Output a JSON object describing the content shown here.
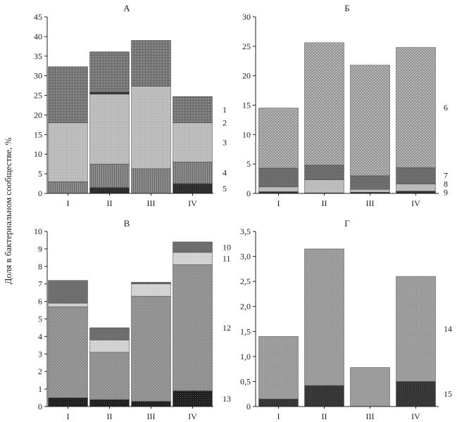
{
  "figure": {
    "ylabel": "Доля в бактериальном сообществе, %"
  },
  "chart_data": [
    {
      "type": "bar",
      "stacked": true,
      "title": "А",
      "categories": [
        "I",
        "II",
        "III",
        "IV"
      ],
      "yticks": [
        "0",
        "5",
        "10",
        "15",
        "20",
        "25",
        "30",
        "35",
        "40",
        "45"
      ],
      "ylim": [
        0,
        45
      ],
      "series": [
        {
          "name": "5",
          "values": [
            0,
            1.5,
            0,
            2.5
          ],
          "pattern": "pat5"
        },
        {
          "name": "4",
          "values": [
            3,
            6,
            6.3,
            5.5
          ],
          "pattern": "pat4"
        },
        {
          "name": "3",
          "values": [
            15,
            17.8,
            21,
            10
          ],
          "pattern": "pat3"
        },
        {
          "name": "2",
          "values": [
            0,
            0.5,
            0,
            0
          ],
          "pattern": "pat2"
        },
        {
          "name": "1",
          "values": [
            14.3,
            10.3,
            11.7,
            6.7
          ],
          "pattern": "pat1"
        }
      ]
    },
    {
      "type": "bar",
      "stacked": true,
      "title": "Б",
      "categories": [
        "I",
        "II",
        "III",
        "IV"
      ],
      "yticks": [
        "0",
        "5",
        "10",
        "15",
        "20",
        "25",
        "30"
      ],
      "ylim": [
        0,
        30
      ],
      "series": [
        {
          "name": "9",
          "values": [
            0.3,
            0.1,
            0.2,
            0.4
          ],
          "pattern": "pat9"
        },
        {
          "name": "8",
          "values": [
            0.8,
            2.2,
            0.5,
            1.2
          ],
          "pattern": "pat8"
        },
        {
          "name": "7",
          "values": [
            3.2,
            2.5,
            2.3,
            2.8
          ],
          "pattern": "pat7"
        },
        {
          "name": "6",
          "values": [
            10.2,
            20.8,
            18.8,
            20.4
          ],
          "pattern": "pat6"
        }
      ]
    },
    {
      "type": "bar",
      "stacked": true,
      "title": "В",
      "categories": [
        "I",
        "II",
        "III",
        "IV"
      ],
      "yticks": [
        "0",
        "1",
        "2",
        "3",
        "4",
        "5",
        "6",
        "7",
        "8",
        "9",
        "10"
      ],
      "ylim": [
        0,
        10
      ],
      "series": [
        {
          "name": "13",
          "values": [
            0.5,
            0.4,
            0.3,
            0.9
          ],
          "pattern": "pat13"
        },
        {
          "name": "12",
          "values": [
            5.2,
            2.7,
            6.0,
            7.2
          ],
          "pattern": "pat12"
        },
        {
          "name": "11",
          "values": [
            0.2,
            0.7,
            0.7,
            0.7
          ],
          "pattern": "pat11"
        },
        {
          "name": "10",
          "values": [
            1.3,
            0.7,
            0.1,
            0.6
          ],
          "pattern": "pat10"
        }
      ]
    },
    {
      "type": "bar",
      "stacked": true,
      "title": "Г",
      "categories": [
        "I",
        "II",
        "III",
        "IV"
      ],
      "yticks": [
        "0",
        "0,5",
        "1,0",
        "1,5",
        "2,0",
        "2,5",
        "3,0",
        "3,5"
      ],
      "ylim": [
        0,
        3.5
      ],
      "series": [
        {
          "name": "15",
          "values": [
            0.15,
            0.42,
            0,
            0.5
          ],
          "pattern": "pat15"
        },
        {
          "name": "14",
          "values": [
            1.25,
            2.73,
            0.78,
            2.1
          ],
          "pattern": "pat14"
        }
      ]
    }
  ]
}
